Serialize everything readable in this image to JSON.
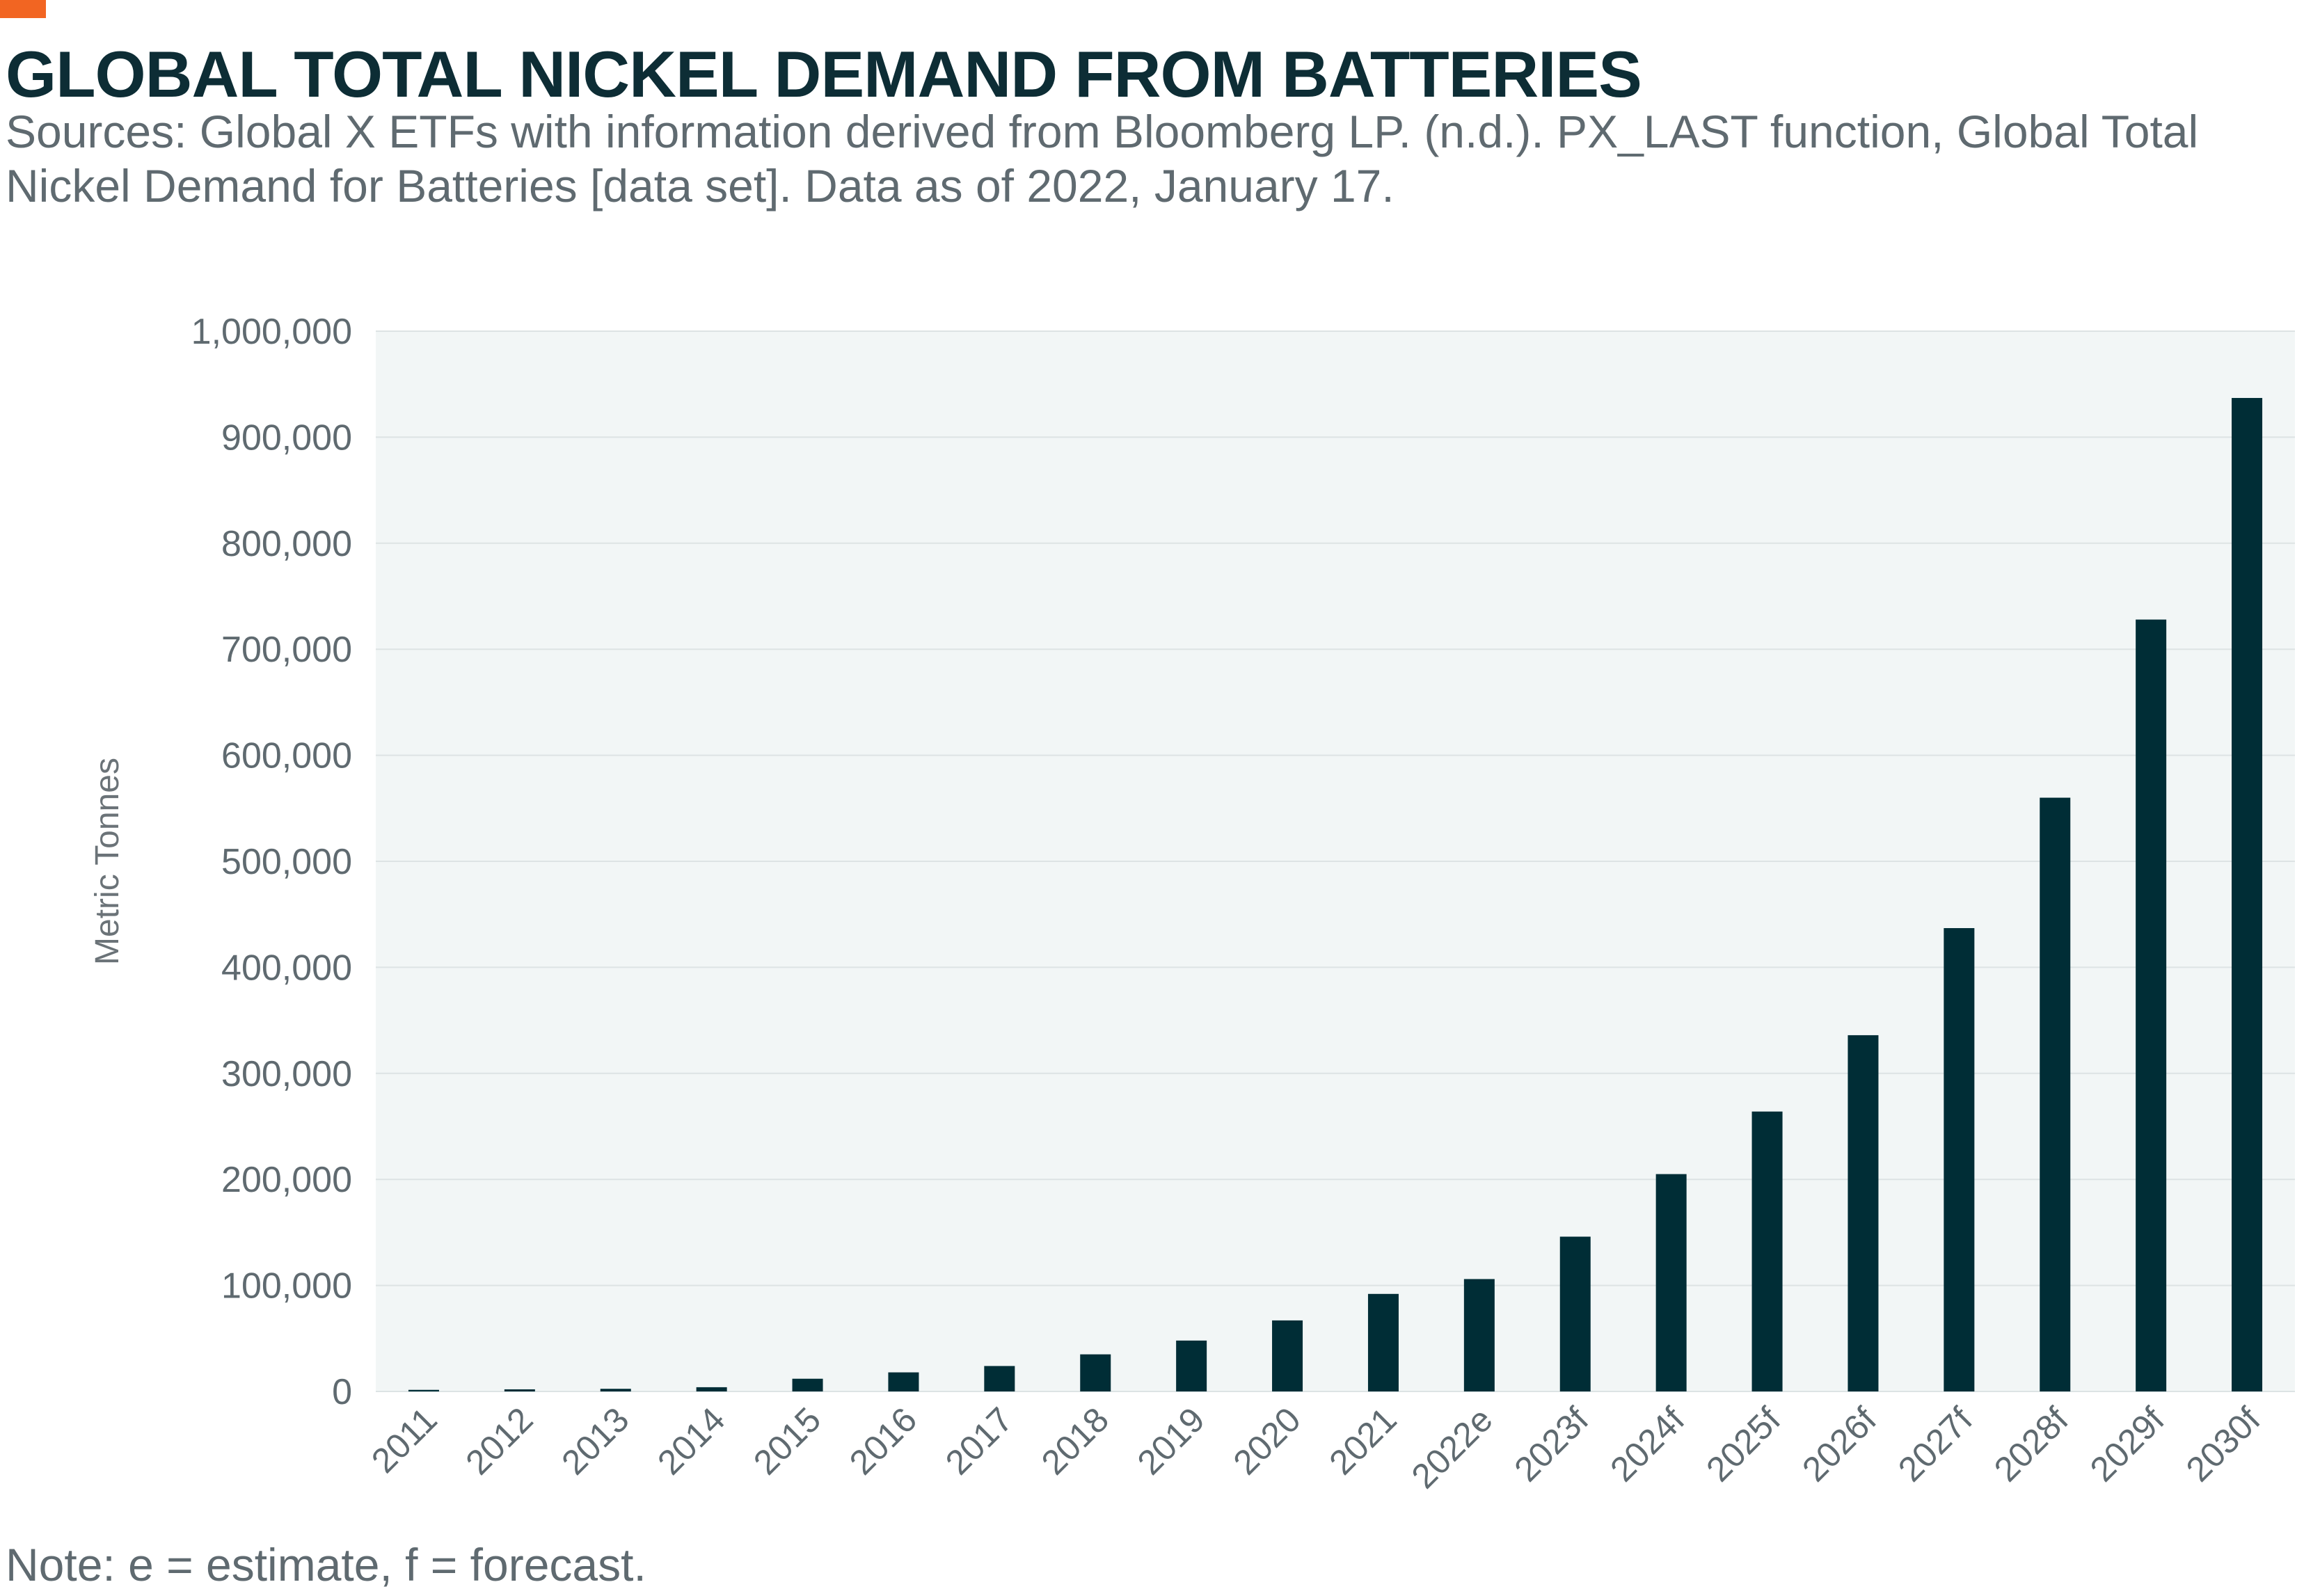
{
  "header": {
    "title": "GLOBAL TOTAL NICKEL DEMAND FROM BATTERIES",
    "subtitle": "Sources: Global X ETFs with information derived from Bloomberg LP. (n.d.). PX_LAST function, Global Total Nickel Demand for Batteries [data set]. Data as of 2022, January 17."
  },
  "footer": {
    "note": "Note: e = estimate, f = forecast."
  },
  "colors": {
    "accent": "#f26522",
    "bar": "#002d36",
    "plot_background": "#f2f6f6",
    "gridline": "#dde3e4"
  },
  "chart_data": {
    "type": "bar",
    "title": "GLOBAL TOTAL NICKEL DEMAND FROM BATTERIES",
    "xlabel": "",
    "ylabel": "Metric Tonnes",
    "ylim": [
      0,
      1000000
    ],
    "grid": true,
    "y_ticks": [
      0,
      100000,
      200000,
      300000,
      400000,
      500000,
      600000,
      700000,
      800000,
      900000,
      1000000
    ],
    "y_tick_labels": [
      "0",
      "100,000",
      "200,000",
      "300,000",
      "400,000",
      "500,000",
      "600,000",
      "700,000",
      "800,000",
      "900,000",
      "1,000,000"
    ],
    "categories": [
      "2011",
      "2012",
      "2013",
      "2014",
      "2015",
      "2016",
      "2017",
      "2018",
      "2019",
      "2020",
      "2021",
      "2022e",
      "2023f",
      "2024f",
      "2025f",
      "2026f",
      "2027f",
      "2028f",
      "2029f",
      "2030f"
    ],
    "series": [
      {
        "name": "Global Total Nickel Demand for Batteries",
        "values": [
          1500,
          2000,
          2500,
          4000,
          12000,
          18000,
          24000,
          35000,
          48000,
          67000,
          92000,
          106000,
          146000,
          205000,
          264000,
          336000,
          437000,
          560000,
          728000,
          937000
        ]
      }
    ]
  }
}
